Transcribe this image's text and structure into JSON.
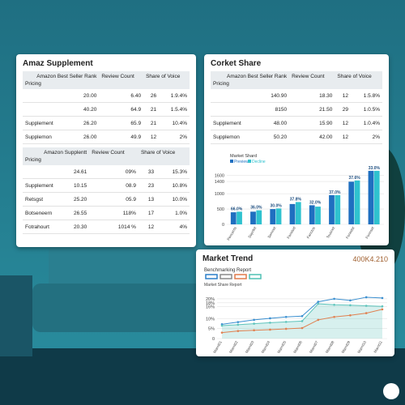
{
  "left_card": {
    "title": "Amaz Supplement",
    "tables": [
      {
        "headers": [
          "Amazon Best Seller Rank",
          "Pricing",
          "Review Count",
          "Share of Voice"
        ],
        "rows": [
          [
            null,
            "20.00",
            "6.40",
            "26",
            "1.9.4%"
          ],
          [
            null,
            "40.20",
            "64.9",
            "21",
            "1.5.4%"
          ],
          [
            "Supplement",
            "26.20",
            "65.9",
            "21",
            "10.4%"
          ],
          [
            "Supplemon",
            "26.00",
            "49.9",
            "12",
            "2%"
          ]
        ]
      },
      {
        "headers": [
          "Amazon Supplentt",
          "Pricing",
          "Review Count",
          "Share of Voice"
        ],
        "rows": [
          [
            null,
            "24.61",
            "09%",
            "33",
            "15.3%"
          ],
          [
            "Supplement",
            "10.15",
            "08.9",
            "23",
            "10.8%"
          ],
          [
            "Retsgst",
            "25.20",
            "05.9",
            "13",
            "10.0%"
          ],
          [
            "Botseneern",
            "26.55",
            "118%",
            "17",
            "1.0%"
          ],
          [
            "Fotrahourt",
            "20.30",
            "1014 %",
            "12",
            "4%"
          ]
        ]
      }
    ]
  },
  "right_card": {
    "title": "Corket Share",
    "table": {
      "headers": [
        "Amazon Best Seller Rank",
        "Pricing",
        "Review Count",
        "Share of Voice"
      ],
      "rows": [
        [
          null,
          "140.90",
          "18.30",
          "12",
          "1.5.8%"
        ],
        [
          null,
          "8150",
          "21.50",
          "29",
          "1.0.5%"
        ],
        [
          "Supplement",
          "48.00",
          "15.90",
          "12",
          "1.0.4%"
        ],
        [
          "Supplemon",
          "50.20",
          "42.00",
          "12",
          "2%"
        ]
      ]
    },
    "chart_data": {
      "type": "bar",
      "legend_title": "Market Shard",
      "categories": [
        "Pencents",
        "Sopnlet",
        "Somnet",
        "Fanstod",
        "Fanctos",
        "Tousnet",
        "Fonedst",
        "Fonnset"
      ],
      "series": [
        {
          "name": "Preview",
          "color": "#1f6fc0",
          "values": [
            395,
            415,
            500,
            665,
            625,
            955,
            1395,
            1750
          ]
        },
        {
          "name": "Decline",
          "color": "#2fc2cf",
          "values": [
            415,
            460,
            520,
            730,
            580,
            955,
            1435,
            1750
          ]
        }
      ],
      "annotations": [
        "66.0%",
        "36.0%",
        "30.0%",
        "37.8%",
        "32.0%",
        "37.0%",
        "37.6%",
        "33.0%"
      ],
      "ylim": [
        0,
        1800
      ],
      "yticks": [
        0,
        500,
        1000,
        1400,
        1600
      ],
      "grid": true
    }
  },
  "trend_card": {
    "title": "Market Trend",
    "figure": "400K4.210",
    "chart_data": {
      "type": "line",
      "subtitle": "Benchmarking Report",
      "legend_colors": [
        "#2b7fc8",
        "#8a8a8a",
        "#e07a4a",
        "#4fc0b4"
      ],
      "label": "Market Share Report",
      "categories": [
        "Marnt01",
        "Marnt02",
        "Marnt03",
        "Marnt04",
        "Marnt05",
        "Marnt06",
        "Marnt07",
        "Marnt08",
        "Marnt09",
        "Marnt10",
        "Marnt11"
      ],
      "series": [
        {
          "color": "#3a8fd0",
          "area": false,
          "values": [
            7.2,
            8.3,
            9.4,
            10.2,
            10.9,
            11.3,
            18.5,
            20,
            19.2,
            20.8,
            20.4
          ]
        },
        {
          "color": "#5fc4bc",
          "area": true,
          "values": [
            6.5,
            7,
            7.5,
            8,
            8.4,
            8.8,
            17.5,
            17,
            16.8,
            16.5,
            16.2
          ]
        },
        {
          "color": "#e08050",
          "area": false,
          "values": [
            3,
            3.8,
            4.2,
            4.5,
            4.9,
            5.3,
            9.4,
            10.9,
            11.7,
            12.8,
            14.7
          ]
        }
      ],
      "ylim": [
        0,
        22
      ],
      "yticks": [
        0,
        {
          "value": 5,
          "label": "5%"
        },
        {
          "value": 10,
          "label": "10%"
        },
        {
          "value": 16,
          "label": "16%"
        },
        {
          "value": 18,
          "label": "18%"
        },
        {
          "value": 20,
          "label": "20%"
        }
      ],
      "grid": true
    }
  }
}
